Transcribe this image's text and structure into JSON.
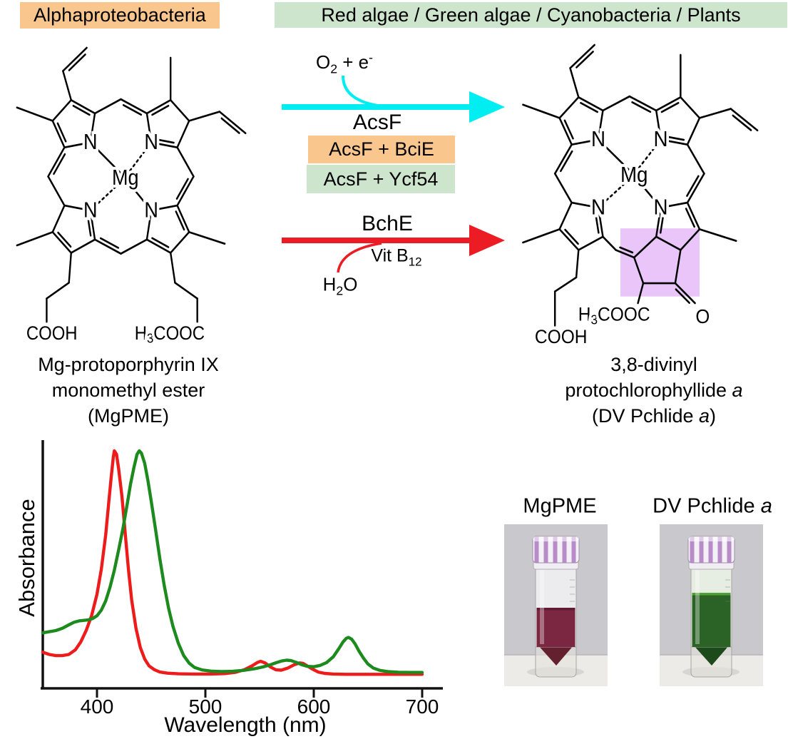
{
  "header": {
    "alpha_label": "Alphaproteobacteria",
    "alpha_bg": "#f9c68e",
    "algae_label": "Red algae / Green algae / Cyanobacteria / Plants",
    "algae_bg": "#cde5cc"
  },
  "reaction_top": {
    "cofactor_o": "O",
    "cofactor_o_sub": "2",
    "cofactor_plus_e": " + e",
    "cofactor_e_sup": "-",
    "enzyme": "AcsF",
    "box1_label": "AcsF + BciE",
    "box1_bg": "#f9c68e",
    "box2_label": "AcsF + Ycf54",
    "box2_bg": "#cde5cc",
    "arrow_color": "#00eef2"
  },
  "reaction_bottom": {
    "enzyme": "BchE",
    "cofactor_pre": "Vit B",
    "cofactor_sub": "12",
    "substrate_h": "H",
    "substrate_sub": "2",
    "substrate_o": "O",
    "arrow_color": "#ec1c24"
  },
  "molecule_left": {
    "line1": "Mg-protoporphyrin IX",
    "line2": "monomethyl ester",
    "line3": "(MgPME)"
  },
  "molecule_right": {
    "line1": "3,8-divinyl",
    "line2_main": "protochlorophyllide ",
    "line2_italic": "a",
    "line3_pre": "(DV Pchlide ",
    "line3_italic": "a",
    "line3_post": ")",
    "highlight_color": "rgba(206,126,241,0.45)"
  },
  "atoms": {
    "mg": "Mg",
    "n": "N",
    "cooh": "COOH",
    "ester_h": "H",
    "ester_sub": "3",
    "ester_rest": "COOC",
    "keto_o": "O"
  },
  "photos": {
    "left": {
      "label": "MgPME",
      "liquid": "#7b2742",
      "surface": "#5e1b32",
      "cone": "#63202e",
      "tint": "rgba(240,240,242,0.9)"
    },
    "right": {
      "label_pre": "DV Pchlide ",
      "label_italic": "a",
      "liquid": "#2b6326",
      "surface": "#4fa231",
      "cone": "#1d4a1a",
      "tint": "rgba(233,241,228,0.9)"
    }
  },
  "chart_data": {
    "type": "line",
    "title": "",
    "x_axis": {
      "label": "Wavelength (nm)",
      "ticks": [
        400,
        500,
        600,
        700
      ],
      "range": [
        350,
        716
      ]
    },
    "y_axis": {
      "label": "Absorbance",
      "range_relative": [
        0,
        1
      ]
    },
    "grid": false,
    "legend": "none",
    "series": [
      {
        "name": "MgPME",
        "color": "#ee1b1b",
        "points": [
          [
            350,
            0.115
          ],
          [
            356,
            0.105
          ],
          [
            362,
            0.1
          ],
          [
            368,
            0.1
          ],
          [
            374,
            0.105
          ],
          [
            380,
            0.125
          ],
          [
            385,
            0.16
          ],
          [
            390,
            0.21
          ],
          [
            395,
            0.275
          ],
          [
            400,
            0.37
          ],
          [
            404,
            0.48
          ],
          [
            408,
            0.63
          ],
          [
            411,
            0.78
          ],
          [
            413,
            0.88
          ],
          [
            415,
            0.97
          ],
          [
            416,
            1.0
          ],
          [
            418,
            0.985
          ],
          [
            420,
            0.92
          ],
          [
            423,
            0.8
          ],
          [
            426,
            0.64
          ],
          [
            429,
            0.48
          ],
          [
            432,
            0.345
          ],
          [
            436,
            0.22
          ],
          [
            440,
            0.135
          ],
          [
            444,
            0.085
          ],
          [
            448,
            0.055
          ],
          [
            453,
            0.038
          ],
          [
            458,
            0.028
          ],
          [
            465,
            0.023
          ],
          [
            475,
            0.02
          ],
          [
            490,
            0.019
          ],
          [
            505,
            0.019
          ],
          [
            518,
            0.021
          ],
          [
            528,
            0.027
          ],
          [
            536,
            0.038
          ],
          [
            543,
            0.055
          ],
          [
            548,
            0.07
          ],
          [
            551,
            0.075
          ],
          [
            555,
            0.068
          ],
          [
            560,
            0.05
          ],
          [
            565,
            0.038
          ],
          [
            570,
            0.036
          ],
          [
            576,
            0.045
          ],
          [
            582,
            0.06
          ],
          [
            587,
            0.068
          ],
          [
            590,
            0.066
          ],
          [
            594,
            0.055
          ],
          [
            599,
            0.04
          ],
          [
            604,
            0.028
          ],
          [
            610,
            0.022
          ],
          [
            618,
            0.019
          ],
          [
            630,
            0.018
          ],
          [
            650,
            0.018
          ],
          [
            675,
            0.018
          ],
          [
            700,
            0.018
          ]
        ]
      },
      {
        "name": "DV Pchlide a",
        "color": "#1c8a1c",
        "points": [
          [
            350,
            0.2
          ],
          [
            356,
            0.205
          ],
          [
            362,
            0.21
          ],
          [
            368,
            0.22
          ],
          [
            374,
            0.235
          ],
          [
            379,
            0.247
          ],
          [
            384,
            0.253
          ],
          [
            388,
            0.255
          ],
          [
            392,
            0.257
          ],
          [
            396,
            0.263
          ],
          [
            400,
            0.275
          ],
          [
            404,
            0.3
          ],
          [
            408,
            0.34
          ],
          [
            412,
            0.4
          ],
          [
            416,
            0.475
          ],
          [
            420,
            0.565
          ],
          [
            424,
            0.66
          ],
          [
            428,
            0.77
          ],
          [
            431,
            0.855
          ],
          [
            434,
            0.925
          ],
          [
            437,
            0.985
          ],
          [
            439,
            1.0
          ],
          [
            441,
            0.99
          ],
          [
            444,
            0.945
          ],
          [
            447,
            0.87
          ],
          [
            450,
            0.78
          ],
          [
            454,
            0.655
          ],
          [
            458,
            0.525
          ],
          [
            462,
            0.41
          ],
          [
            466,
            0.31
          ],
          [
            470,
            0.23
          ],
          [
            475,
            0.155
          ],
          [
            480,
            0.1
          ],
          [
            485,
            0.067
          ],
          [
            490,
            0.048
          ],
          [
            497,
            0.037
          ],
          [
            505,
            0.032
          ],
          [
            515,
            0.03
          ],
          [
            525,
            0.031
          ],
          [
            535,
            0.035
          ],
          [
            545,
            0.042
          ],
          [
            553,
            0.05
          ],
          [
            560,
            0.06
          ],
          [
            566,
            0.07
          ],
          [
            571,
            0.077
          ],
          [
            575,
            0.08
          ],
          [
            579,
            0.078
          ],
          [
            584,
            0.07
          ],
          [
            589,
            0.06
          ],
          [
            594,
            0.053
          ],
          [
            600,
            0.051
          ],
          [
            606,
            0.057
          ],
          [
            612,
            0.07
          ],
          [
            618,
            0.095
          ],
          [
            623,
            0.13
          ],
          [
            627,
            0.16
          ],
          [
            630,
            0.176
          ],
          [
            632,
            0.18
          ],
          [
            635,
            0.172
          ],
          [
            638,
            0.152
          ],
          [
            642,
            0.118
          ],
          [
            646,
            0.088
          ],
          [
            650,
            0.063
          ],
          [
            655,
            0.045
          ],
          [
            661,
            0.035
          ],
          [
            668,
            0.03
          ],
          [
            678,
            0.027
          ],
          [
            690,
            0.026
          ],
          [
            700,
            0.026
          ]
        ]
      }
    ]
  }
}
